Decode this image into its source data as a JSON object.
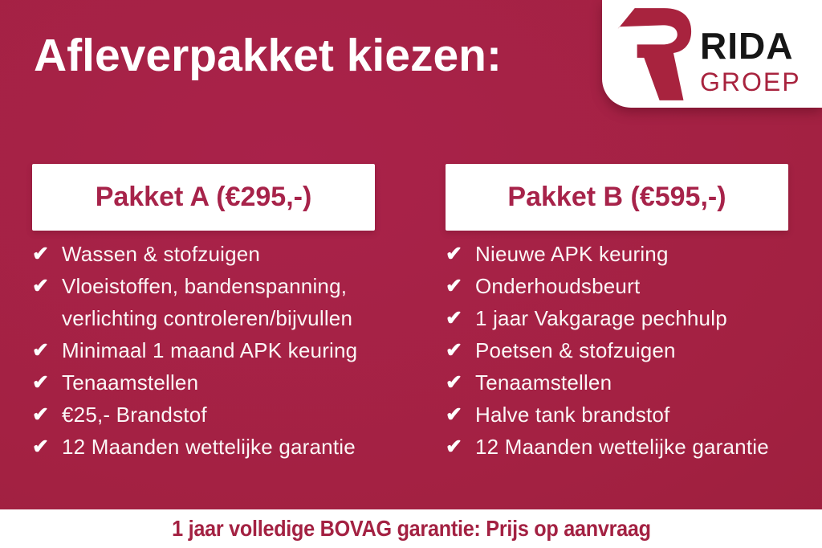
{
  "title": "Afleverpakket kiezen:",
  "logo": {
    "brand": "RIDA",
    "sub": "GROEP",
    "mark_icon": "rida-r-logo"
  },
  "packages": [
    {
      "header": "Pakket A (€295,-)",
      "items": [
        {
          "lines": [
            "Wassen & stofzuigen"
          ]
        },
        {
          "lines": [
            "Vloeistoffen, bandenspanning,",
            "verlichting controleren/bijvullen"
          ]
        },
        {
          "lines": [
            "Minimaal 1 maand APK keuring"
          ]
        },
        {
          "lines": [
            "Tenaamstellen"
          ]
        },
        {
          "lines": [
            "€25,- Brandstof"
          ]
        },
        {
          "lines": [
            "12 Maanden wettelijke garantie"
          ]
        }
      ]
    },
    {
      "header": "Pakket B (€595,-)",
      "items": [
        {
          "lines": [
            "Nieuwe APK keuring"
          ]
        },
        {
          "lines": [
            "Onderhoudsbeurt"
          ]
        },
        {
          "lines": [
            "1 jaar Vakgarage pechhulp"
          ]
        },
        {
          "lines": [
            "Poetsen & stofzuigen"
          ]
        },
        {
          "lines": [
            "Tenaamstellen"
          ]
        },
        {
          "lines": [
            "Halve tank brandstof"
          ]
        },
        {
          "lines": [
            "12 Maanden wettelijke garantie"
          ]
        }
      ]
    }
  ],
  "footer": {
    "text": "1 jaar volledige BOVAG garantie: Prijs op aanvraag"
  },
  "icons": {
    "check": "✔"
  },
  "colors": {
    "background": "#A32142",
    "accent_red": "#A7234A",
    "brand_dark": "#161616",
    "brand_red": "#A8233E",
    "white": "#FFFFFF"
  }
}
